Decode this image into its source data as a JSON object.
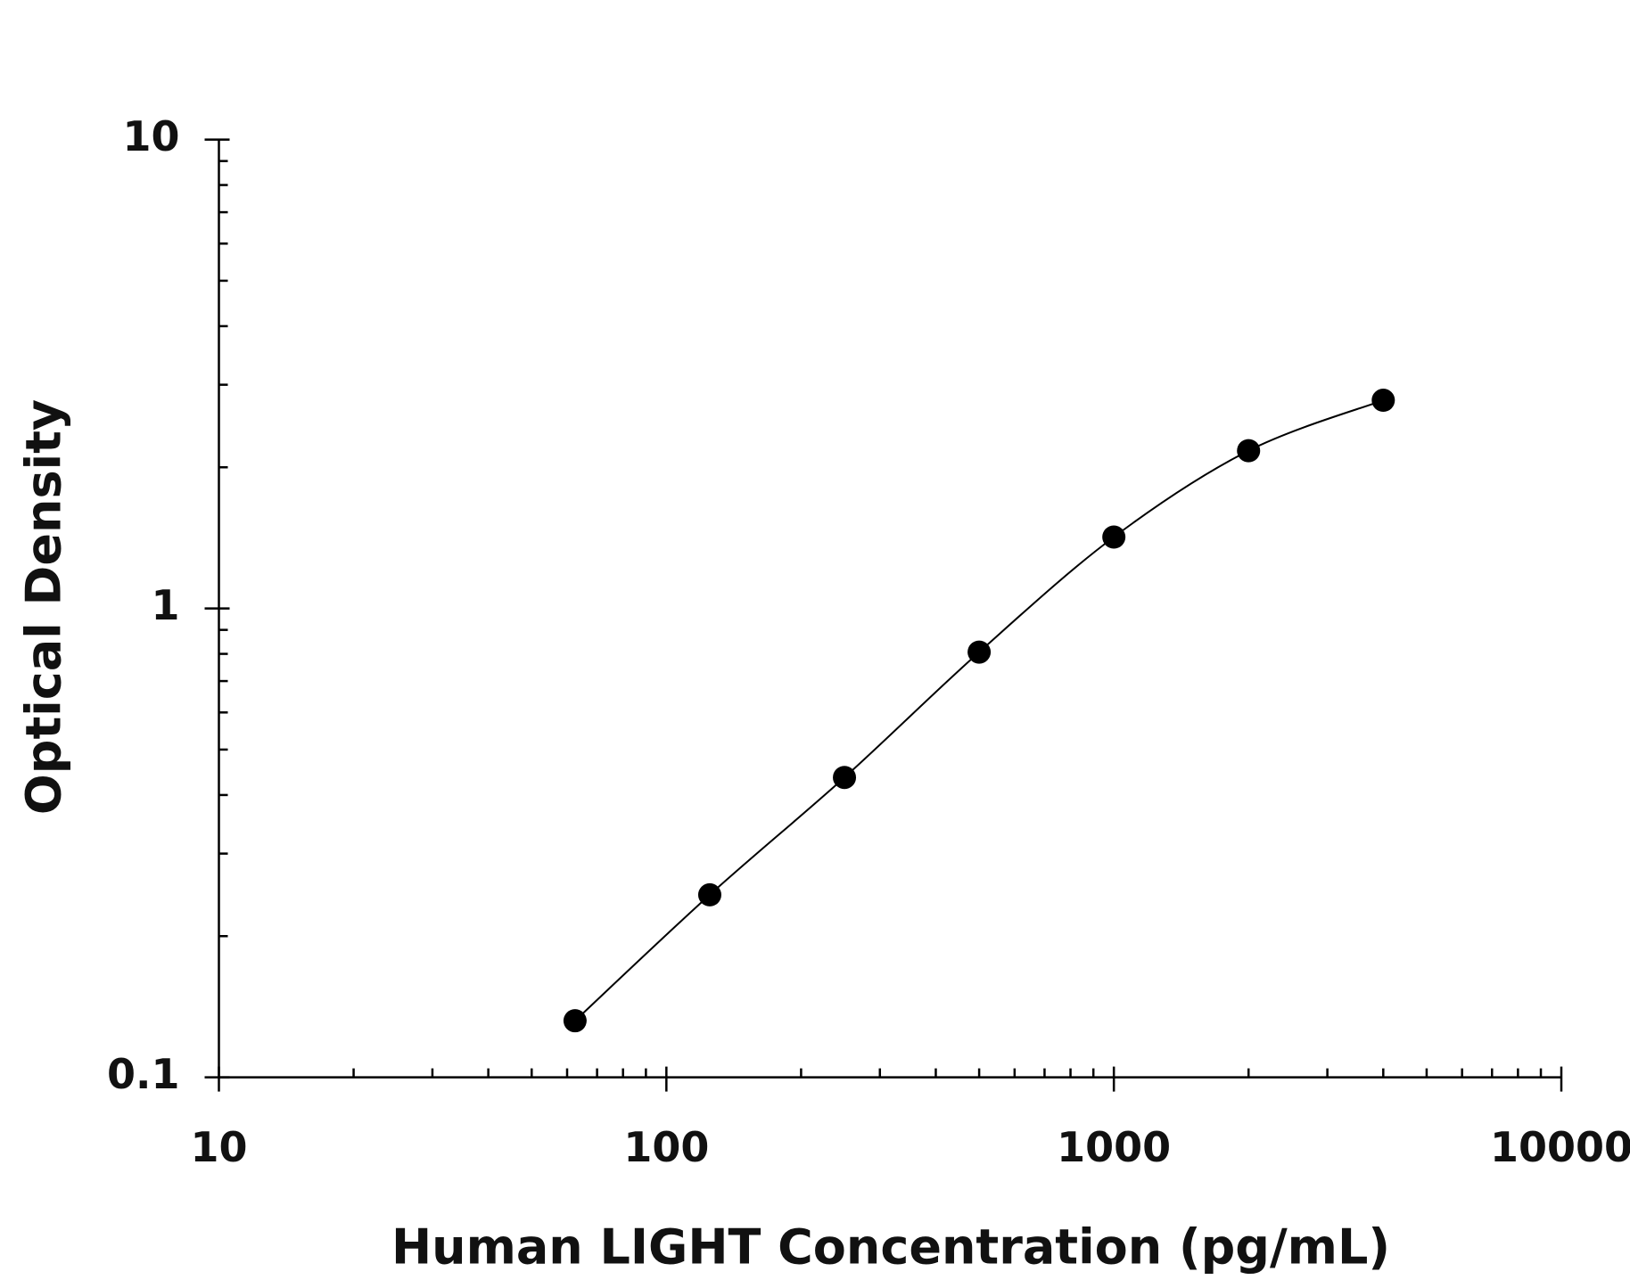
{
  "chart_data": {
    "type": "scatter",
    "x_label": "Human LIGHT Concentration (pg/mL)",
    "y_label": "Optical Density",
    "x": [
      62.5,
      125,
      250,
      500,
      1000,
      2000,
      4000
    ],
    "series": [
      {
        "color": "#000000",
        "values": [
          0.132,
          0.245,
          0.436,
          0.807,
          1.42,
          2.17,
          2.78
        ]
      }
    ],
    "xlim": [
      10,
      10000
    ],
    "xticks": [
      10,
      100,
      1000,
      10000
    ],
    "ylim": [
      0.1,
      10
    ],
    "yticks": [
      0.1,
      1,
      10
    ],
    "xscale": "log",
    "yscale": "log",
    "fit_line": true
  }
}
